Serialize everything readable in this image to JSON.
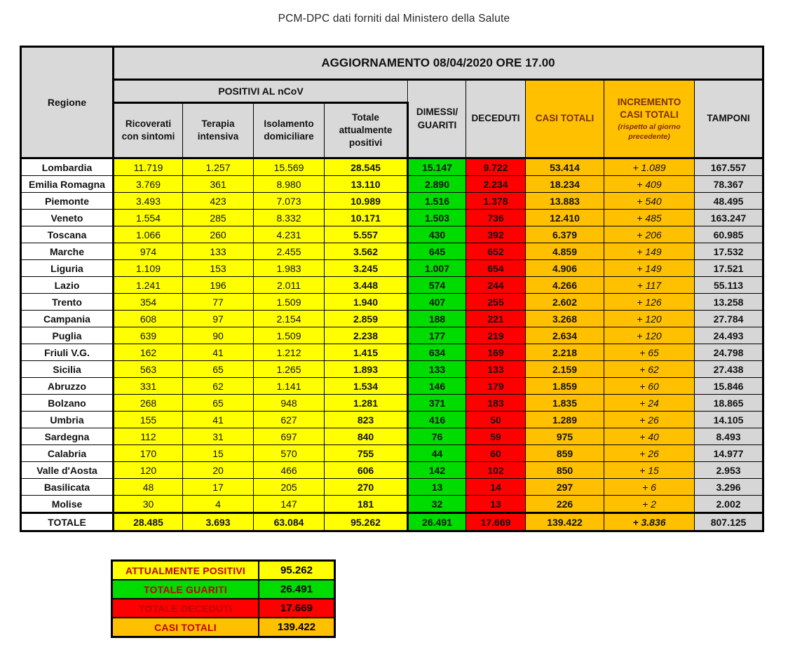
{
  "title": "PCM-DPC dati forniti dal Ministero della Salute",
  "colors": {
    "yellow": "#FFFF00",
    "green": "#00DB00",
    "red": "#FF0000",
    "orange": "#FFC000",
    "header_gray": "#D9D9D9",
    "deceduti_text": "#7F1400",
    "orange_header_text": "#7B3000",
    "summary_label_red": "#C00000"
  },
  "chart_data": {
    "type": "table",
    "update_title": "AGGIORNAMENTO 08/04/2020 ORE 17.00",
    "region_header": "Regione",
    "positivi_group_header": "POSITIVI AL nCoV",
    "incremento_note": "(rispetto al giorno precedente)",
    "columns": [
      "Ricoverati con sintomi",
      "Terapia intensiva",
      "Isolamento domiciliare",
      "Totale attualmente positivi",
      "DIMESSI/ GUARITI",
      "DECEDUTI",
      "CASI TOTALI",
      "INCREMENTO CASI TOTALI",
      "TAMPONI"
    ],
    "rows": [
      [
        "Lombardia",
        "11.719",
        "1.257",
        "15.569",
        "28.545",
        "15.147",
        "9.722",
        "53.414",
        "+ 1.089",
        "167.557"
      ],
      [
        "Emilia Romagna",
        "3.769",
        "361",
        "8.980",
        "13.110",
        "2.890",
        "2.234",
        "18.234",
        "+ 409",
        "78.367"
      ],
      [
        "Piemonte",
        "3.493",
        "423",
        "7.073",
        "10.989",
        "1.516",
        "1.378",
        "13.883",
        "+ 540",
        "48.495"
      ],
      [
        "Veneto",
        "1.554",
        "285",
        "8.332",
        "10.171",
        "1.503",
        "736",
        "12.410",
        "+ 485",
        "163.247"
      ],
      [
        "Toscana",
        "1.066",
        "260",
        "4.231",
        "5.557",
        "430",
        "392",
        "6.379",
        "+ 206",
        "60.985"
      ],
      [
        "Marche",
        "974",
        "133",
        "2.455",
        "3.562",
        "645",
        "652",
        "4.859",
        "+ 149",
        "17.532"
      ],
      [
        "Liguria",
        "1.109",
        "153",
        "1.983",
        "3.245",
        "1.007",
        "654",
        "4.906",
        "+ 149",
        "17.521"
      ],
      [
        "Lazio",
        "1.241",
        "196",
        "2.011",
        "3.448",
        "574",
        "244",
        "4.266",
        "+ 117",
        "55.113"
      ],
      [
        "Trento",
        "354",
        "77",
        "1.509",
        "1.940",
        "407",
        "255",
        "2.602",
        "+ 126",
        "13.258"
      ],
      [
        "Campania",
        "608",
        "97",
        "2.154",
        "2.859",
        "188",
        "221",
        "3.268",
        "+ 120",
        "27.784"
      ],
      [
        "Puglia",
        "639",
        "90",
        "1.509",
        "2.238",
        "177",
        "219",
        "2.634",
        "+ 120",
        "24.493"
      ],
      [
        "Friuli V.G.",
        "162",
        "41",
        "1.212",
        "1.415",
        "634",
        "169",
        "2.218",
        "+ 65",
        "24.798"
      ],
      [
        "Sicilia",
        "563",
        "65",
        "1.265",
        "1.893",
        "133",
        "133",
        "2.159",
        "+ 62",
        "27.438"
      ],
      [
        "Abruzzo",
        "331",
        "62",
        "1.141",
        "1.534",
        "146",
        "179",
        "1.859",
        "+ 60",
        "15.846"
      ],
      [
        "Bolzano",
        "268",
        "65",
        "948",
        "1.281",
        "371",
        "183",
        "1.835",
        "+ 24",
        "18.865"
      ],
      [
        "Umbria",
        "155",
        "41",
        "627",
        "823",
        "416",
        "50",
        "1.289",
        "+ 26",
        "14.105"
      ],
      [
        "Sardegna",
        "112",
        "31",
        "697",
        "840",
        "76",
        "59",
        "975",
        "+ 40",
        "8.493"
      ],
      [
        "Calabria",
        "170",
        "15",
        "570",
        "755",
        "44",
        "60",
        "859",
        "+ 26",
        "14.977"
      ],
      [
        "Valle d'Aosta",
        "120",
        "20",
        "466",
        "606",
        "142",
        "102",
        "850",
        "+ 15",
        "2.953"
      ],
      [
        "Basilicata",
        "48",
        "17",
        "205",
        "270",
        "13",
        "14",
        "297",
        "+ 6",
        "3.296"
      ],
      [
        "Molise",
        "30",
        "4",
        "147",
        "181",
        "32",
        "13",
        "226",
        "+ 2",
        "2.002"
      ]
    ],
    "total_row": [
      "TOTALE",
      "28.485",
      "3.693",
      "63.084",
      "95.262",
      "26.491",
      "17.669",
      "139.422",
      "+ 3.836",
      "807.125"
    ],
    "summary": [
      {
        "label": "ATTUALMENTE POSITIVI",
        "value": "95.262",
        "bg": "#FFFF00"
      },
      {
        "label": "TOTALE GUARITI",
        "value": "26.491",
        "bg": "#00DB00"
      },
      {
        "label": "TOTALE DECEDUTI",
        "value": "17.669",
        "bg": "#FF0000"
      },
      {
        "label": "CASI TOTALI",
        "value": "139.422",
        "bg": "#FFC000"
      }
    ]
  }
}
